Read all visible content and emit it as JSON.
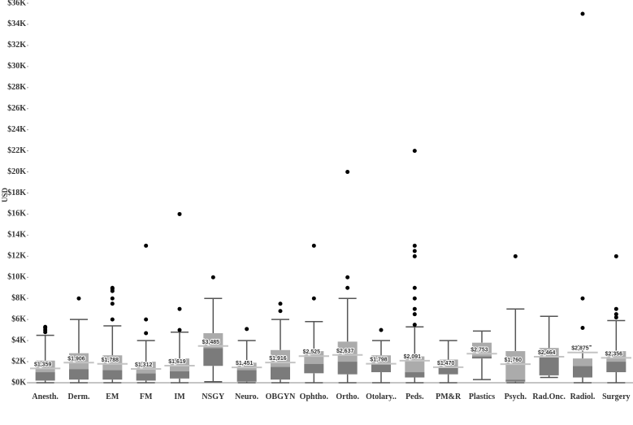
{
  "chart_data": {
    "type": "box",
    "y_label": "USD",
    "categories": [
      "Anesth.",
      "Derm.",
      "EM",
      "FM",
      "IM",
      "NSGY",
      "Neuro.",
      "OBGYN",
      "Ophtho.",
      "Ortho.",
      "Otolary..",
      "Peds.",
      "PM&R",
      "Plastics",
      "Psych.",
      "Rad.Onc.",
      "Radiol.",
      "Surgery"
    ],
    "min": [
      0,
      0,
      0,
      0,
      0,
      100,
      0,
      0,
      0,
      0,
      0,
      0,
      0,
      300,
      0,
      500,
      0,
      0
    ],
    "q1": [
      200,
      300,
      300,
      200,
      400,
      1600,
      100,
      300,
      900,
      800,
      1000,
      500,
      800,
      2300,
      100,
      700,
      500,
      1000
    ],
    "median": [
      1000,
      1300,
      1200,
      900,
      1100,
      3300,
      1200,
      1500,
      1800,
      2000,
      1800,
      1000,
      1400,
      2500,
      300,
      2500,
      1600,
      2000
    ],
    "q3": [
      2100,
      2800,
      2600,
      2000,
      2300,
      4700,
      1900,
      3100,
      3000,
      3900,
      2600,
      2500,
      2200,
      3800,
      3000,
      3300,
      2300,
      3000
    ],
    "max": [
      4500,
      6000,
      5400,
      4000,
      4800,
      8000,
      4000,
      6000,
      5800,
      8000,
      4000,
      5300,
      4000,
      4900,
      7000,
      6300,
      3500,
      5900
    ],
    "mean": [
      1359,
      1906,
      1788,
      1312,
      1619,
      3485,
      1451,
      1916,
      2525,
      2637,
      1798,
      2091,
      1470,
      2753,
      1760,
      2464,
      2875,
      2356
    ],
    "mean_labels": [
      "$1,359",
      "$1,906",
      "$1,788",
      "$1,312",
      "$1,619",
      "$3,485",
      "$1,451",
      "$1,916",
      "$2,525",
      "$2,637",
      "$1,798",
      "$2,091",
      "$1,470",
      "$2,753",
      "$1,760",
      "$2,464",
      "$2,875",
      "$2,356"
    ],
    "outliers": [
      [
        4800,
        5000,
        5200,
        5300
      ],
      [
        8000
      ],
      [
        6000,
        7500,
        8000,
        8700,
        8900,
        9000
      ],
      [
        4700,
        6000,
        13000
      ],
      [
        5000,
        7000,
        16000
      ],
      [
        10000
      ],
      [
        5100
      ],
      [
        6800,
        7500
      ],
      [
        8000,
        13000
      ],
      [
        9000,
        10000,
        20000
      ],
      [
        5000
      ],
      [
        5500,
        6500,
        7000,
        8000,
        9000,
        12000,
        12500,
        13000,
        22000
      ],
      [],
      [],
      [
        12000
      ],
      [],
      [
        5200,
        8000,
        35000
      ],
      [
        6200,
        6500,
        7000,
        12000
      ]
    ],
    "colors": {
      "lower": "#7b7b7b",
      "upper": "#ababab",
      "whisker": "#555555",
      "mean": "#c4c4c4",
      "outlier": "#000000"
    },
    "ylim": [
      0,
      36000
    ],
    "yticks": [
      {
        "value": 0,
        "label": "$0K"
      },
      {
        "value": 2000,
        "label": "$2K"
      },
      {
        "value": 4000,
        "label": "$4K"
      },
      {
        "value": 6000,
        "label": "$6K"
      },
      {
        "value": 8000,
        "label": "$8K"
      },
      {
        "value": 10000,
        "label": "$10K"
      },
      {
        "value": 12000,
        "label": "$12K"
      },
      {
        "value": 14000,
        "label": "$14K"
      },
      {
        "value": 16000,
        "label": "$16K"
      },
      {
        "value": 18000,
        "label": "$18K"
      },
      {
        "value": 20000,
        "label": "$20K"
      },
      {
        "value": 22000,
        "label": "$22K"
      },
      {
        "value": 24000,
        "label": "$24K"
      },
      {
        "value": 26000,
        "label": "$26K"
      },
      {
        "value": 28000,
        "label": "$28K"
      },
      {
        "value": 30000,
        "label": "$30K"
      },
      {
        "value": 32000,
        "label": "$32K"
      },
      {
        "value": 34000,
        "label": "$34K"
      },
      {
        "value": 36000,
        "label": "$36K"
      }
    ]
  }
}
